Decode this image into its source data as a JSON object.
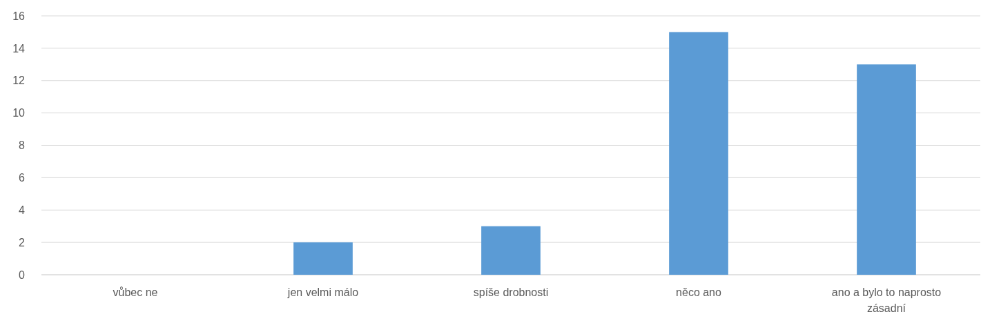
{
  "chart_data": {
    "type": "bar",
    "categories": [
      "vůbec ne",
      "jen velmi málo",
      "spíše drobnosti",
      "něco ano",
      "ano a bylo to naprosto zásadní"
    ],
    "values": [
      0,
      2,
      3,
      15,
      13
    ],
    "color": "#5b9bd5",
    "ylim": [
      0,
      16
    ],
    "yticks": [
      0,
      2,
      4,
      6,
      8,
      10,
      12,
      14,
      16
    ],
    "grid": "y"
  }
}
